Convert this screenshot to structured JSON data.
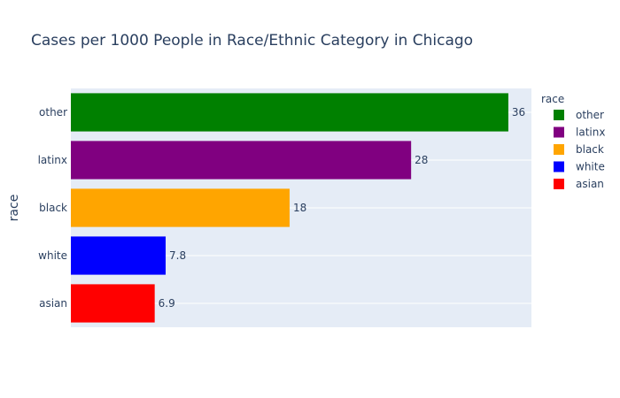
{
  "chart_data": {
    "type": "bar",
    "orientation": "horizontal",
    "title": "Cases per 1000 People in Race/Ethnic Category in Chicago",
    "xlabel": "",
    "ylabel": "race",
    "xlim": [
      0,
      37.9
    ],
    "categories": [
      "asian",
      "white",
      "black",
      "latinx",
      "other"
    ],
    "values": [
      6.9,
      7.8,
      18,
      28,
      36
    ],
    "value_labels": [
      "6.9",
      "7.8",
      "18",
      "28",
      "36"
    ],
    "colors": [
      "#ff0000",
      "#0000ff",
      "#ffa500",
      "#800080",
      "#008000"
    ],
    "grid": true,
    "legend": {
      "title": "race",
      "placement": "right",
      "items": [
        {
          "label": "other",
          "color": "#008000"
        },
        {
          "label": "latinx",
          "color": "#800080"
        },
        {
          "label": "black",
          "color": "#ffa500"
        },
        {
          "label": "white",
          "color": "#0000ff"
        },
        {
          "label": "asian",
          "color": "#ff0000"
        }
      ]
    },
    "plot_background": "#e5ecf6"
  }
}
